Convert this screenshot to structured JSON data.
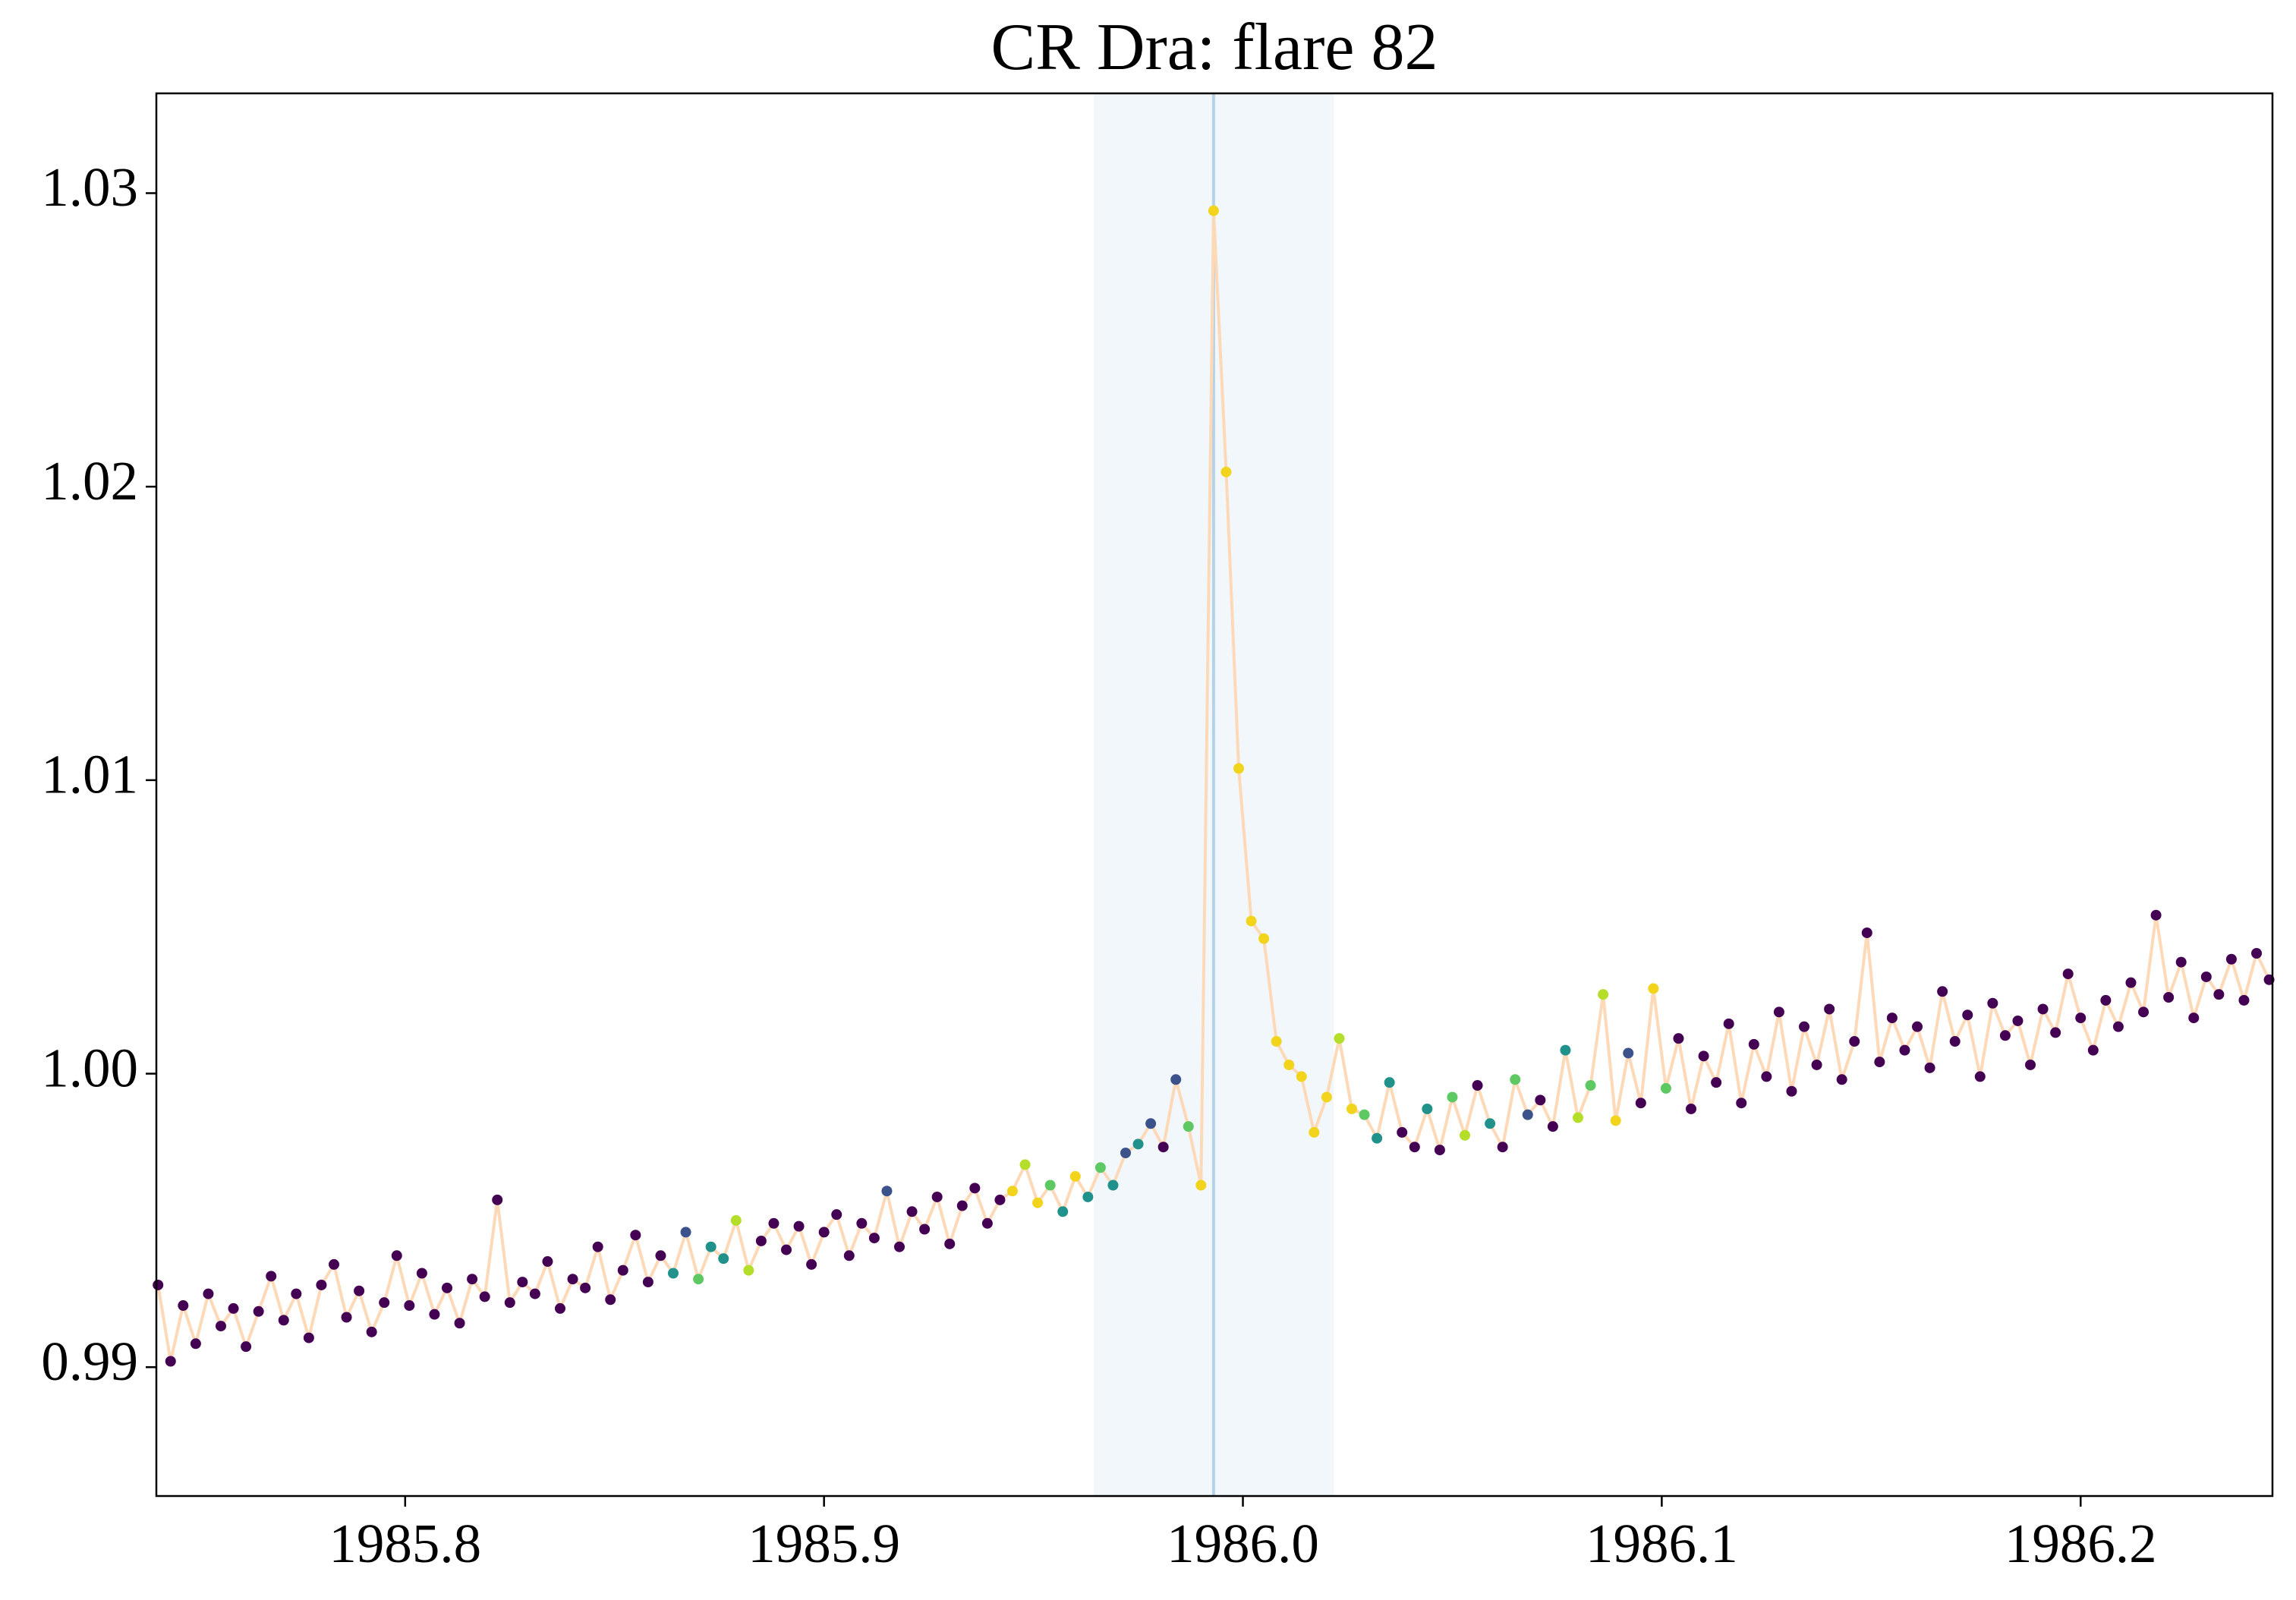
{
  "chart_data": {
    "type": "scatter",
    "title": "CR Dra: flare 82",
    "x": [
      1985.741,
      1985.744,
      1985.747,
      1985.75,
      1985.753,
      1985.756,
      1985.759,
      1985.762,
      1985.765,
      1985.768,
      1985.771,
      1985.774,
      1985.777,
      1985.78,
      1985.783,
      1985.786,
      1985.789,
      1985.792,
      1985.795,
      1985.798,
      1985.801,
      1985.804,
      1985.807,
      1985.81,
      1985.813,
      1985.816,
      1985.819,
      1985.822,
      1985.825,
      1985.828,
      1985.831,
      1985.834,
      1985.837,
      1985.84,
      1985.843,
      1985.846,
      1985.849,
      1985.852,
      1985.855,
      1985.858,
      1985.861,
      1985.864,
      1985.867,
      1985.87,
      1985.873,
      1985.876,
      1985.879,
      1985.882,
      1985.885,
      1985.888,
      1985.891,
      1985.894,
      1985.897,
      1985.9,
      1985.903,
      1985.906,
      1985.909,
      1985.912,
      1985.915,
      1985.918,
      1985.921,
      1985.924,
      1985.927,
      1985.93,
      1985.933,
      1985.936,
      1985.939,
      1985.942,
      1985.945,
      1985.948,
      1985.951,
      1985.954,
      1985.957,
      1985.96,
      1985.963,
      1985.966,
      1985.969,
      1985.972,
      1985.975,
      1985.978,
      1985.981,
      1985.984,
      1985.987,
      1985.99,
      1985.993,
      1985.996,
      1985.999,
      1986.002,
      1986.005,
      1986.008,
      1986.011,
      1986.014,
      1986.017,
      1986.02,
      1986.023,
      1986.026,
      1986.029,
      1986.032,
      1986.035,
      1986.038,
      1986.041,
      1986.044,
      1986.047,
      1986.05,
      1986.053,
      1986.056,
      1986.059,
      1986.062,
      1986.065,
      1986.068,
      1986.071,
      1986.074,
      1986.077,
      1986.08,
      1986.083,
      1986.086,
      1986.089,
      1986.092,
      1986.095,
      1986.098,
      1986.101,
      1986.104,
      1986.107,
      1986.11,
      1986.113,
      1986.116,
      1986.119,
      1986.122,
      1986.125,
      1986.128,
      1986.131,
      1986.134,
      1986.137,
      1986.14,
      1986.143,
      1986.146,
      1986.149,
      1986.152,
      1986.155,
      1986.158,
      1986.161,
      1986.164,
      1986.167,
      1986.17,
      1986.173,
      1986.176,
      1986.179,
      1986.182,
      1986.185,
      1986.188,
      1986.191,
      1986.194,
      1986.197,
      1986.2,
      1986.203,
      1986.206,
      1986.209,
      1986.212,
      1986.215,
      1986.218,
      1986.221,
      1986.224,
      1986.227,
      1986.23,
      1986.233,
      1986.236,
      1986.239,
      1986.242,
      1986.245
    ],
    "values": [
      0.9928,
      0.9902,
      0.9921,
      0.9908,
      0.9925,
      0.9914,
      0.992,
      0.9907,
      0.9919,
      0.9931,
      0.9916,
      0.9925,
      0.991,
      0.9928,
      0.9935,
      0.9917,
      0.9926,
      0.9912,
      0.9922,
      0.9938,
      0.9921,
      0.9932,
      0.9918,
      0.9927,
      0.9915,
      0.993,
      0.9924,
      0.9957,
      0.9922,
      0.9929,
      0.9925,
      0.9936,
      0.992,
      0.993,
      0.9927,
      0.9941,
      0.9923,
      0.9933,
      0.9945,
      0.9929,
      0.9938,
      0.9932,
      0.9946,
      0.993,
      0.9941,
      0.9937,
      0.995,
      0.9933,
      0.9943,
      0.9949,
      0.994,
      0.9948,
      0.9935,
      0.9946,
      0.9952,
      0.9938,
      0.9949,
      0.9944,
      0.996,
      0.9941,
      0.9953,
      0.9947,
      0.9958,
      0.9942,
      0.9955,
      0.9961,
      0.9949,
      0.9957,
      0.996,
      0.9969,
      0.9956,
      0.9962,
      0.9953,
      0.9965,
      0.9958,
      0.9968,
      0.9962,
      0.9973,
      0.9976,
      0.9983,
      0.9975,
      0.9998,
      0.9982,
      0.9962,
      1.0294,
      1.0205,
      1.0104,
      1.0052,
      1.0046,
      1.0011,
      1.0003,
      0.9999,
      0.998,
      0.9992,
      1.0012,
      0.9988,
      0.9986,
      0.9978,
      0.9997,
      0.998,
      0.9975,
      0.9988,
      0.9974,
      0.9992,
      0.9979,
      0.9996,
      0.9983,
      0.9975,
      0.9998,
      0.9986,
      0.9991,
      0.9982,
      1.0008,
      0.9985,
      0.9996,
      1.0027,
      0.9984,
      1.0007,
      0.999,
      1.0029,
      0.9995,
      1.0012,
      0.9988,
      1.0006,
      0.9997,
      1.0017,
      0.999,
      1.001,
      0.9999,
      1.0021,
      0.9994,
      1.0016,
      1.0003,
      1.0022,
      0.9998,
      1.0011,
      1.0048,
      1.0004,
      1.0019,
      1.0008,
      1.0016,
      1.0002,
      1.0028,
      1.0011,
      1.002,
      0.9999,
      1.0024,
      1.0013,
      1.0018,
      1.0003,
      1.0022,
      1.0014,
      1.0034,
      1.0019,
      1.0008,
      1.0025,
      1.0016,
      1.0031,
      1.0021,
      1.0054,
      1.0026,
      1.0038,
      1.0019,
      1.0033,
      1.0027,
      1.0039,
      1.0025,
      1.0041,
      1.0032
    ],
    "point_colors": [
      "#440154",
      "#440154",
      "#440154",
      "#440154",
      "#440154",
      "#440154",
      "#440154",
      "#440154",
      "#440154",
      "#440154",
      "#440154",
      "#440154",
      "#440154",
      "#440154",
      "#440154",
      "#440154",
      "#440154",
      "#440154",
      "#440154",
      "#440154",
      "#440154",
      "#440154",
      "#440154",
      "#440154",
      "#440154",
      "#440154",
      "#440154",
      "#440154",
      "#440154",
      "#440154",
      "#440154",
      "#440154",
      "#440154",
      "#440154",
      "#440154",
      "#440154",
      "#440154",
      "#440154",
      "#440154",
      "#440154",
      "#440154",
      "#21918c",
      "#3b528b",
      "#5ec962",
      "#21918c",
      "#21918c",
      "#b5de2b",
      "#b5de2b",
      "#440154",
      "#440154",
      "#440154",
      "#440154",
      "#440154",
      "#440154",
      "#440154",
      "#440154",
      "#440154",
      "#440154",
      "#3b528b",
      "#440154",
      "#440154",
      "#440154",
      "#440154",
      "#440154",
      "#440154",
      "#440154",
      "#440154",
      "#440154",
      "#f2d41c",
      "#b5de2b",
      "#f2d41c",
      "#5ec962",
      "#21918c",
      "#f2d41c",
      "#21918c",
      "#5ec962",
      "#21918c",
      "#3b528b",
      "#21918c",
      "#3b528b",
      "#440154",
      "#3b528b",
      "#5ec962",
      "#f2d41c",
      "#f2d41c",
      "#f2d41c",
      "#f2d41c",
      "#f2d41c",
      "#f2d41c",
      "#f2d41c",
      "#f2d41c",
      "#f2d41c",
      "#f2d41c",
      "#f2d41c",
      "#b5de2b",
      "#f2d41c",
      "#5ec962",
      "#21918c",
      "#21918c",
      "#440154",
      "#440154",
      "#21918c",
      "#440154",
      "#5ec962",
      "#b5de2b",
      "#440154",
      "#21918c",
      "#440154",
      "#5ec962",
      "#3b528b",
      "#440154",
      "#440154",
      "#21918c",
      "#b5de2b",
      "#5ec962",
      "#b5de2b",
      "#f2d41c",
      "#3b528b",
      "#440154",
      "#f2d41c",
      "#5ec962",
      "#440154",
      "#440154",
      "#440154",
      "#440154",
      "#440154",
      "#440154",
      "#440154",
      "#440154",
      "#440154",
      "#440154",
      "#440154",
      "#440154",
      "#440154",
      "#440154",
      "#440154",
      "#440154",
      "#440154",
      "#440154",
      "#440154",
      "#440154",
      "#440154",
      "#440154",
      "#440154",
      "#440154",
      "#440154",
      "#440154",
      "#440154",
      "#440154",
      "#440154",
      "#440154",
      "#440154",
      "#440154",
      "#440154",
      "#440154",
      "#440154",
      "#440154",
      "#440154",
      "#440154",
      "#440154",
      "#440154",
      "#440154",
      "#440154",
      "#440154",
      "#440154",
      "#440154",
      "#440154",
      "#440154",
      "#440154"
    ],
    "line_color": "#fdd9b8",
    "span": [
      1985.9644,
      1986.0217
    ],
    "span_color": "#f1f7fa",
    "vline": 1985.993,
    "vline_color": "#b5d2e8",
    "xlim": [
      1985.7406,
      1986.2458
    ],
    "xticks": [
      1985.8,
      1985.9,
      {
        "value": 1986.0,
        "label": "1986.0"
      },
      1986.1,
      1986.2
    ],
    "ylim": [
      0.98561,
      1.0334
    ],
    "yticks": [
      0.99,
      {
        "value": 1.0,
        "label": "1.00"
      },
      1.01,
      1.02,
      1.03
    ],
    "grid": false
  }
}
